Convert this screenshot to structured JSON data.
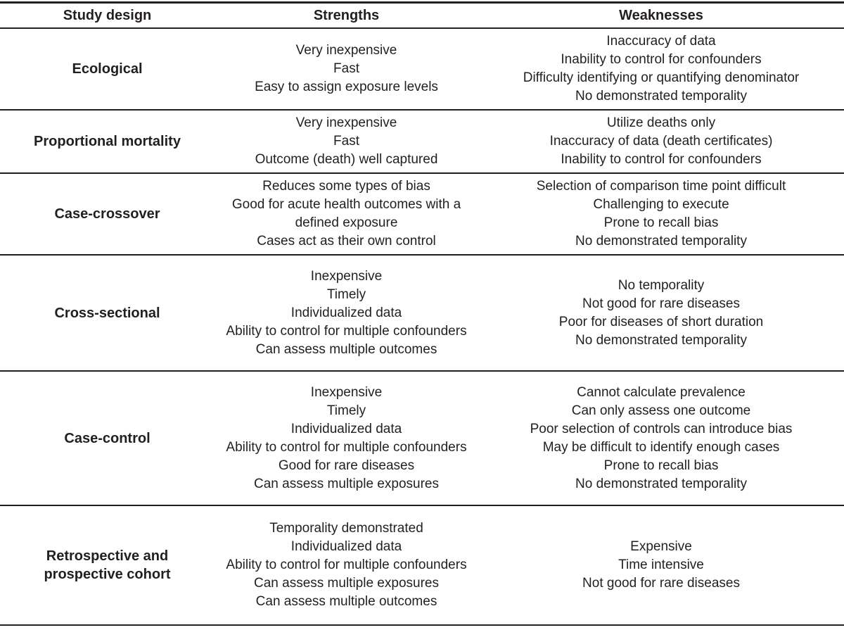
{
  "colors": {
    "text": "#231f20",
    "rule": "#231f20",
    "background": "#ffffff"
  },
  "table": {
    "headers": {
      "design": "Study design",
      "strengths": "Strengths",
      "weaknesses": "Weaknesses"
    },
    "rows": [
      {
        "design": "Ecological",
        "strengths": [
          "Very inexpensive",
          "Fast",
          "Easy to assign exposure levels"
        ],
        "weaknesses": [
          "Inaccuracy of data",
          "Inability to control for confounders",
          "Difficulty identifying or quantifying denominator",
          "No demonstrated temporality"
        ]
      },
      {
        "design": "Proportional mortality",
        "strengths": [
          "Very inexpensive",
          "Fast",
          "Outcome (death) well captured"
        ],
        "weaknesses": [
          "Utilize deaths only",
          "Inaccuracy of data (death certificates)",
          "Inability to control for confounders"
        ]
      },
      {
        "design": "Case-crossover",
        "strengths": [
          "Reduces some types of bias",
          "Good for acute health outcomes with a defined exposure",
          "Cases act as their own control"
        ],
        "weaknesses": [
          "Selection of comparison time point difficult",
          "Challenging to execute",
          "Prone to recall bias",
          "No demonstrated temporality"
        ]
      },
      {
        "design": "Cross-sectional",
        "strengths": [
          "Inexpensive",
          "Timely",
          "Individualized data",
          "Ability to control for multiple confounders",
          "Can assess multiple outcomes"
        ],
        "weaknesses": [
          "No temporality",
          "Not good for rare diseases",
          "Poor for diseases of short duration",
          "No demonstrated temporality"
        ]
      },
      {
        "design": "Case-control",
        "strengths": [
          "Inexpensive",
          "Timely",
          "Individualized data",
          "Ability to control for multiple confounders",
          "Good for rare diseases",
          "Can assess multiple exposures"
        ],
        "weaknesses": [
          "Cannot calculate prevalence",
          "Can only assess one outcome",
          "Poor selection of controls can introduce bias",
          "May be difficult to identify enough cases",
          "Prone to recall bias",
          "No demonstrated temporality"
        ]
      },
      {
        "design": "Retrospective and prospective cohort",
        "strengths": [
          "Temporality demonstrated",
          "Individualized data",
          "Ability to control for multiple confounders",
          "Can assess multiple exposures",
          "Can assess multiple outcomes"
        ],
        "weaknesses": [
          "Expensive",
          "Time intensive",
          "Not good for rare diseases"
        ]
      }
    ]
  }
}
